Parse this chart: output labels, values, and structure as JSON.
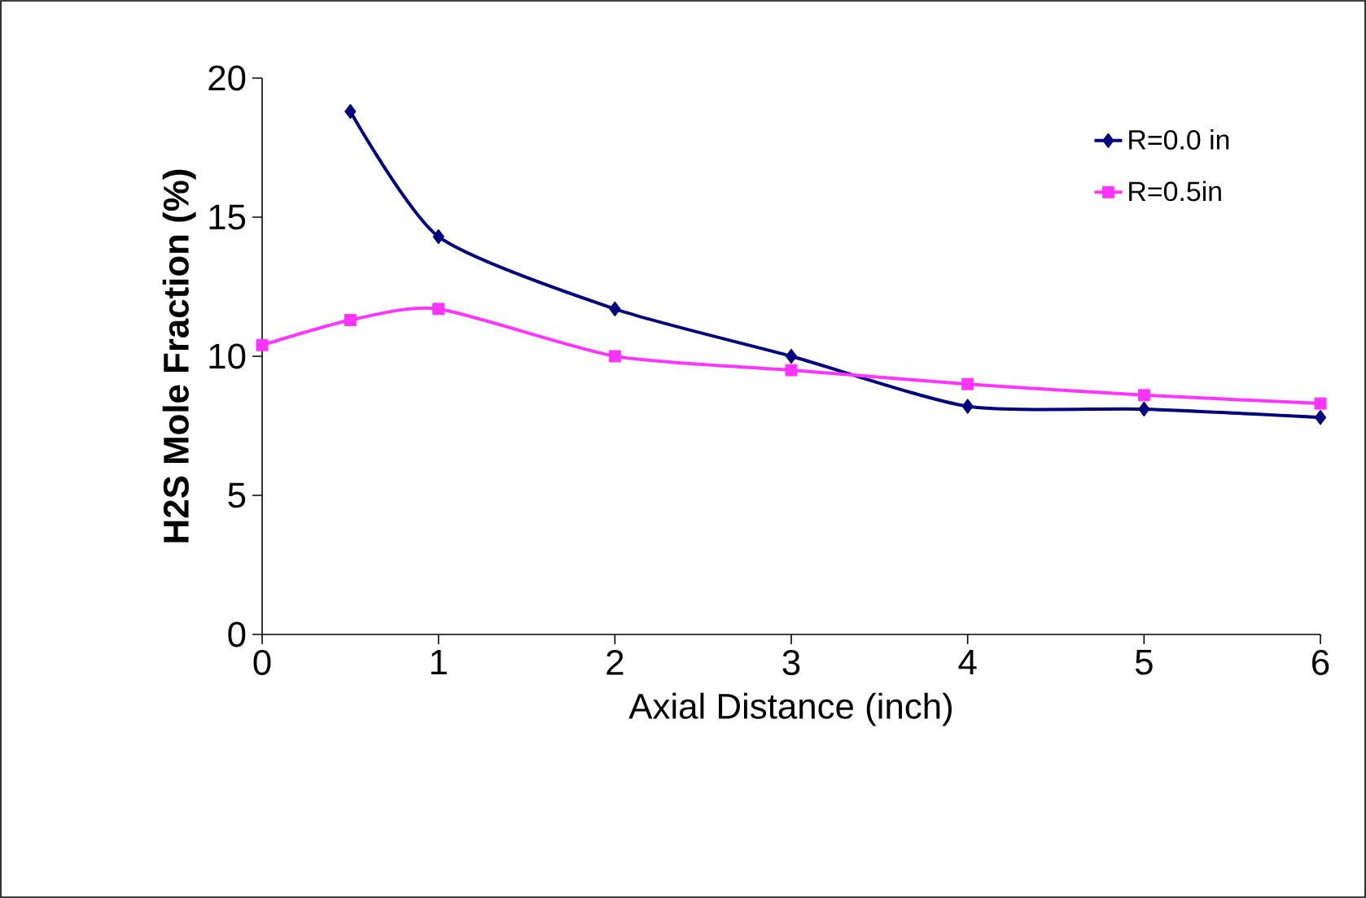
{
  "chart_data": {
    "type": "line",
    "xlabel": "Axial Distance (inch)",
    "ylabel": "H2S Mole Fraction (%)",
    "xlim": [
      0,
      6
    ],
    "ylim": [
      0,
      20
    ],
    "xticks": [
      0,
      1,
      2,
      3,
      4,
      5,
      6
    ],
    "yticks": [
      0,
      5,
      10,
      15,
      20
    ],
    "grid": false,
    "legend": "top right",
    "series": [
      {
        "name": "R=0.0 in",
        "color": "#000080",
        "marker": "diamond",
        "x": [
          0.5,
          1,
          2,
          3,
          4,
          5,
          6
        ],
        "values": [
          18.8,
          14.3,
          11.7,
          10.0,
          8.2,
          8.1,
          7.8
        ]
      },
      {
        "name": "R=0.5in",
        "color": "#ff33ff",
        "marker": "square",
        "x": [
          0,
          0.5,
          1,
          2,
          3,
          4,
          5,
          6
        ],
        "values": [
          10.4,
          11.3,
          11.7,
          10.0,
          9.5,
          9.0,
          8.6,
          8.3
        ]
      }
    ]
  }
}
